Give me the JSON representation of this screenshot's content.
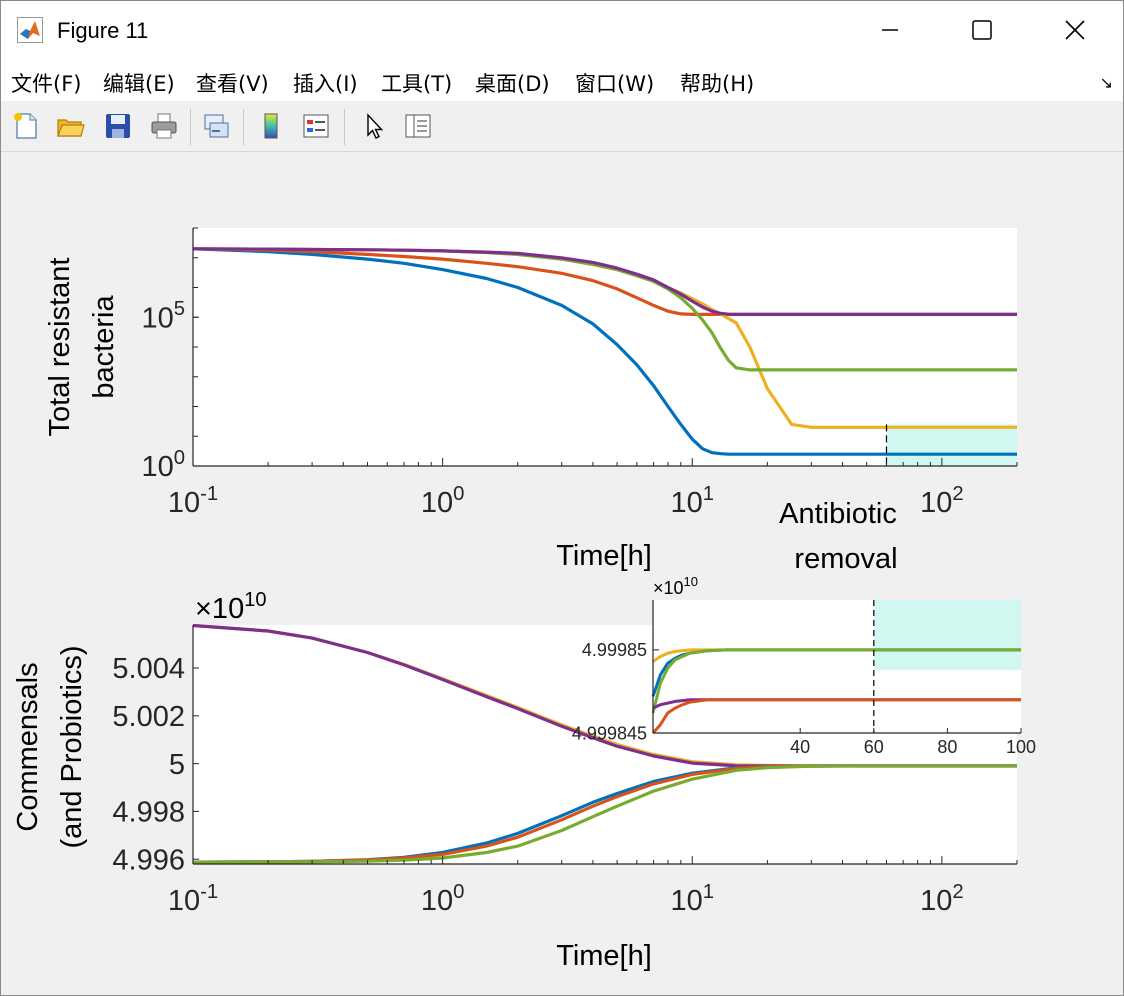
{
  "window": {
    "title": "Figure 11",
    "icon": "matlab-logo-icon",
    "controls": [
      "minimize-icon",
      "maximize-icon",
      "close-icon"
    ]
  },
  "menu": [
    "文件(F)",
    "编辑(E)",
    "查看(V)",
    "插入(I)",
    "工具(T)",
    "桌面(D)",
    "窗口(W)",
    "帮助(H)"
  ],
  "menu_arrow": "↘",
  "toolbar": [
    "new-figure-icon",
    "open-file-icon",
    "save-icon",
    "print-icon",
    "link-plot-icon",
    "colorbar-icon",
    "legend-icon",
    "pointer-icon",
    "property-editor-icon"
  ],
  "colors": {
    "blue": "#0072BD",
    "orange": "#D95319",
    "yellow": "#EDB120",
    "purple": "#7E2F8E",
    "green": "#77AC30",
    "shade": "#d0f8f0"
  },
  "annotation": {
    "line1": "Antibiotic",
    "line2": "removal"
  },
  "chart_data": [
    {
      "type": "line",
      "xscale": "log",
      "yscale": "log",
      "xlim": [
        0.1,
        200
      ],
      "ylim": [
        1,
        100000000.0
      ],
      "xlabel": "Time[h]",
      "ylabel": [
        "Total resistant",
        "bacteria"
      ],
      "xticks": [
        {
          "label": "10",
          "exp": "-1",
          "value": 0.1
        },
        {
          "label": "10",
          "exp": "0",
          "value": 1
        },
        {
          "label": "10",
          "exp": "1",
          "value": 10
        },
        {
          "label": "10",
          "exp": "2",
          "value": 100
        }
      ],
      "yticks": [
        {
          "label": "10",
          "exp": "0",
          "value": 1
        },
        {
          "label": "10",
          "exp": "5",
          "value": 100000
        }
      ],
      "shaded_region": {
        "x": [
          60,
          200
        ],
        "y": [
          1,
          25
        ]
      },
      "vline_x": 60,
      "x": [
        0.1,
        0.2,
        0.3,
        0.5,
        0.7,
        1,
        1.5,
        2,
        3,
        4,
        5,
        6,
        7,
        8,
        9,
        10,
        11,
        12,
        13,
        14,
        15,
        17,
        20,
        25,
        30,
        40,
        60,
        100,
        200
      ],
      "series": [
        {
          "color": "blue",
          "values": [
            20000000,
            16000000,
            13000000,
            9000000,
            6500000,
            4000000,
            2000000,
            1000000,
            250000,
            60000,
            12000,
            2500,
            500,
            100,
            25,
            8,
            3.8,
            2.8,
            2.6,
            2.5,
            2.5,
            2.5,
            2.5,
            2.5,
            2.5,
            2.5,
            2.5,
            2.5,
            2.5
          ]
        },
        {
          "color": "orange",
          "values": [
            20000000,
            18000000,
            16000000,
            13000000,
            11000000,
            9000000,
            6500000,
            5000000,
            3000000,
            1700000,
            900000,
            450000,
            250000,
            160000,
            130000,
            125000,
            125000,
            125000,
            125000,
            125000,
            125000,
            125000,
            125000,
            125000,
            125000,
            125000,
            125000,
            125000,
            125000
          ]
        },
        {
          "color": "yellow",
          "values": [
            20000000,
            19500000,
            19000000,
            18500000,
            18000000,
            17000000,
            15000000,
            13000000,
            9000000,
            6000000,
            4000000,
            2500000,
            1600000,
            1000000,
            650000,
            420000,
            280000,
            180000,
            130000,
            90000,
            65000,
            10000,
            400,
            25,
            20,
            20,
            20,
            20,
            20
          ]
        },
        {
          "color": "green",
          "values": [
            20000000,
            19500000,
            19000000,
            18500000,
            18000000,
            17000000,
            15000000,
            13000000,
            9000000,
            6000000,
            4000000,
            2500000,
            1600000,
            900000,
            450000,
            200000,
            80000,
            30000,
            9000,
            3500,
            2000,
            1700,
            1700,
            1700,
            1700,
            1700,
            1700,
            1700,
            1700
          ]
        },
        {
          "color": "purple",
          "values": [
            20000000,
            19500000,
            19000000,
            18500000,
            18000000,
            17000000,
            15500000,
            14000000,
            10000000,
            7000000,
            4500000,
            2800000,
            1800000,
            1000000,
            600000,
            350000,
            220000,
            160000,
            135000,
            127000,
            125000,
            125000,
            125000,
            125000,
            125000,
            125000,
            125000,
            125000,
            125000
          ]
        }
      ]
    },
    {
      "type": "line",
      "xscale": "log",
      "xlim": [
        0.1,
        200
      ],
      "ylim": [
        4.9958,
        5.0058
      ],
      "xlabel": "Time[h]",
      "ylabel": [
        "Commensals",
        "(and Probiotics)"
      ],
      "exponent_label": {
        "prefix": "×10",
        "exp": "10"
      },
      "xticks": [
        {
          "label": "10",
          "exp": "-1",
          "value": 0.1
        },
        {
          "label": "10",
          "exp": "0",
          "value": 1
        },
        {
          "label": "10",
          "exp": "1",
          "value": 10
        },
        {
          "label": "10",
          "exp": "2",
          "value": 100
        }
      ],
      "yticks": [
        {
          "label": "4.996",
          "value": 4.996
        },
        {
          "label": "4.998",
          "value": 4.998
        },
        {
          "label": "5",
          "value": 5.0
        },
        {
          "label": "5.002",
          "value": 5.002
        },
        {
          "label": "5.004",
          "value": 5.004
        }
      ],
      "x": [
        0.1,
        0.2,
        0.3,
        0.5,
        0.7,
        1,
        1.5,
        2,
        3,
        4,
        5,
        7,
        10,
        15,
        20,
        30,
        50,
        100,
        200
      ],
      "series": [
        {
          "color": "yellow",
          "values": [
            5.00578,
            5.00555,
            5.00525,
            5.00465,
            5.00415,
            5.00355,
            5.00285,
            5.00235,
            5.00162,
            5.00115,
            5.0008,
            5.00038,
            5.00008,
            4.99995,
            4.99992,
            4.99991,
            4.99991,
            4.99991,
            4.99991
          ]
        },
        {
          "color": "purple",
          "values": [
            5.00578,
            5.00555,
            5.00525,
            5.00465,
            5.00413,
            5.00352,
            5.0028,
            5.0023,
            5.00156,
            5.00108,
            5.00073,
            5.00032,
            5.00002,
            4.99991,
            4.9999,
            4.9999,
            4.9999,
            4.9999,
            4.9999
          ]
        },
        {
          "color": "blue",
          "values": [
            4.99588,
            4.99589,
            4.99591,
            4.99598,
            4.99608,
            4.99628,
            4.99668,
            4.99708,
            4.99782,
            4.99838,
            4.99875,
            4.99925,
            4.9996,
            4.99982,
            4.99988,
            4.9999,
            4.99991,
            4.99991,
            4.99991
          ]
        },
        {
          "color": "orange",
          "values": [
            4.99588,
            4.99589,
            4.99591,
            4.99597,
            4.99605,
            4.9962,
            4.99655,
            4.99692,
            4.99765,
            4.99822,
            4.99862,
            4.99915,
            4.99955,
            4.9998,
            4.99987,
            4.9999,
            4.99991,
            4.99991,
            4.99991
          ]
        },
        {
          "color": "green",
          "values": [
            4.99588,
            4.99589,
            4.99589,
            4.99592,
            4.99596,
            4.99605,
            4.99628,
            4.99655,
            4.9972,
            4.99778,
            4.99822,
            4.99885,
            4.99935,
            4.99972,
            4.99983,
            4.99989,
            4.99991,
            4.99991,
            4.99991
          ]
        }
      ]
    },
    {
      "type": "line",
      "inset": true,
      "xlim": [
        0,
        100
      ],
      "ylim": [
        4.999845,
        4.999853
      ],
      "exponent_label": {
        "prefix": "×10",
        "exp": "10"
      },
      "xticks": [
        {
          "label": "40",
          "value": 40
        },
        {
          "label": "60",
          "value": 60
        },
        {
          "label": "80",
          "value": 80
        },
        {
          "label": "100",
          "value": 100
        }
      ],
      "yticks": [
        {
          "label": "4.99985",
          "value": 4.99985
        },
        {
          "label": "4.999845",
          "value": 4.999845
        }
      ],
      "shaded_region": {
        "x": [
          60,
          100
        ],
        "y": [
          4.9998488,
          4.999853
        ]
      },
      "vline_x": 60,
      "x": [
        0,
        2,
        4,
        6,
        8,
        10,
        15,
        20,
        30,
        40,
        60,
        100
      ],
      "series": [
        {
          "color": "yellow",
          "values": [
            4.9998493,
            4.9998496,
            4.9998498,
            4.9998499,
            4.99984995,
            4.99985,
            4.99985,
            4.99985,
            4.99985,
            4.99985,
            4.99985,
            4.99985
          ]
        },
        {
          "color": "blue",
          "values": [
            4.9998472,
            4.9998485,
            4.9998492,
            4.9998495,
            4.9998497,
            4.9998498,
            4.99984995,
            4.99985,
            4.99985,
            4.99985,
            4.99985,
            4.99985
          ]
        },
        {
          "color": "green",
          "values": [
            4.9998462,
            4.999848,
            4.9998489,
            4.9998494,
            4.9998496,
            4.9998498,
            4.99984995,
            4.99985,
            4.99985,
            4.99985,
            4.99985,
            4.99985
          ]
        },
        {
          "color": "purple",
          "values": [
            4.9998465,
            4.9998467,
            4.9998468,
            4.9998469,
            4.99984695,
            4.999847,
            4.999847,
            4.999847,
            4.999847,
            4.999847,
            4.999847,
            4.999847
          ]
        },
        {
          "color": "orange",
          "values": [
            4.999844,
            4.9998455,
            4.9998462,
            4.9998465,
            4.9998467,
            4.99984685,
            4.999847,
            4.999847,
            4.999847,
            4.999847,
            4.999847,
            4.999847
          ]
        }
      ]
    }
  ]
}
